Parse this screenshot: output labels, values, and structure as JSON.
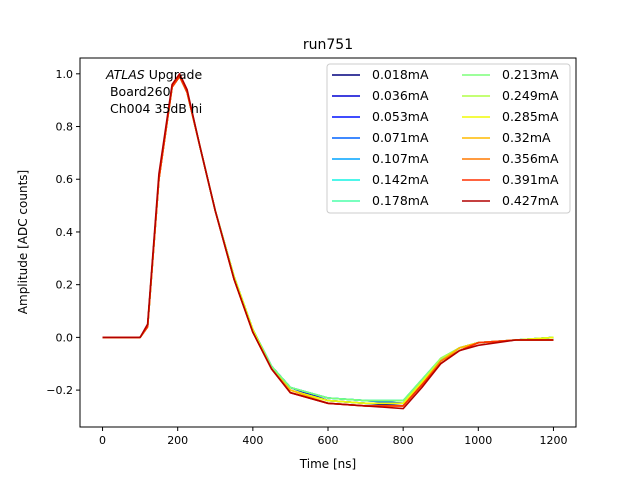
{
  "chart_data": {
    "type": "line",
    "title": "run751",
    "xlabel": "Time [ns]",
    "ylabel": "Amplitude [ADC counts]",
    "xlim": [
      -60,
      1260
    ],
    "ylim": [
      -0.34,
      1.06
    ],
    "xticks": [
      0,
      200,
      400,
      600,
      800,
      1000,
      1200
    ],
    "yticks": [
      -0.2,
      0.0,
      0.2,
      0.4,
      0.6,
      0.8,
      1.0
    ],
    "xtick_labels": [
      "0",
      "200",
      "400",
      "600",
      "800",
      "1000",
      "1200"
    ],
    "ytick_labels": [
      "−0.2",
      "0.0",
      "0.2",
      "0.4",
      "0.6",
      "0.8",
      "1.0"
    ],
    "grid": false,
    "legend_position": "top-right",
    "legend_columns": 2,
    "annotation": {
      "italic": "ATLAS",
      "rest": " Upgrade",
      "line2": " Board260",
      "line3": " Ch004 35dB hi"
    },
    "x": [
      0,
      100,
      120,
      150,
      185,
      205,
      225,
      260,
      300,
      350,
      400,
      450,
      500,
      600,
      700,
      800,
      850,
      900,
      950,
      1000,
      1100,
      1200
    ],
    "series": [
      {
        "name": "0.018mA",
        "color": "#00007f",
        "values": [
          0.0,
          0.0,
          0.04,
          0.6,
          0.95,
          0.99,
          0.93,
          0.72,
          0.48,
          0.23,
          0.03,
          -0.11,
          -0.19,
          -0.24,
          -0.25,
          -0.26,
          -0.18,
          -0.09,
          -0.04,
          -0.02,
          -0.01,
          0.0
        ]
      },
      {
        "name": "0.036mA",
        "color": "#0000d4",
        "values": [
          0.0,
          0.0,
          0.04,
          0.6,
          0.95,
          0.99,
          0.93,
          0.72,
          0.48,
          0.23,
          0.03,
          -0.11,
          -0.19,
          -0.24,
          -0.25,
          -0.25,
          -0.18,
          -0.09,
          -0.04,
          -0.02,
          -0.01,
          0.0
        ]
      },
      {
        "name": "0.053mA",
        "color": "#0010ff",
        "values": [
          0.0,
          0.0,
          0.04,
          0.6,
          0.95,
          0.99,
          0.93,
          0.72,
          0.48,
          0.23,
          0.03,
          -0.11,
          -0.19,
          -0.23,
          -0.24,
          -0.25,
          -0.17,
          -0.09,
          -0.04,
          -0.02,
          -0.01,
          0.0
        ]
      },
      {
        "name": "0.071mA",
        "color": "#0064ff",
        "values": [
          0.0,
          0.0,
          0.04,
          0.6,
          0.95,
          0.99,
          0.93,
          0.72,
          0.48,
          0.23,
          0.03,
          -0.11,
          -0.19,
          -0.23,
          -0.24,
          -0.25,
          -0.17,
          -0.08,
          -0.04,
          -0.02,
          -0.01,
          0.0
        ]
      },
      {
        "name": "0.107mA",
        "color": "#00a4ff",
        "values": [
          0.0,
          0.0,
          0.04,
          0.6,
          0.95,
          0.99,
          0.93,
          0.72,
          0.48,
          0.23,
          0.03,
          -0.11,
          -0.19,
          -0.23,
          -0.24,
          -0.24,
          -0.16,
          -0.08,
          -0.04,
          -0.02,
          -0.01,
          0.0
        ]
      },
      {
        "name": "0.142mA",
        "color": "#14f4e3",
        "values": [
          0.0,
          0.0,
          0.04,
          0.6,
          0.95,
          0.99,
          0.93,
          0.72,
          0.48,
          0.23,
          0.03,
          -0.11,
          -0.19,
          -0.23,
          -0.24,
          -0.24,
          -0.16,
          -0.08,
          -0.04,
          -0.02,
          -0.01,
          0.0
        ]
      },
      {
        "name": "0.178mA",
        "color": "#4dffaa",
        "values": [
          0.0,
          0.0,
          0.04,
          0.6,
          0.95,
          0.99,
          0.93,
          0.72,
          0.48,
          0.23,
          0.03,
          -0.11,
          -0.19,
          -0.23,
          -0.24,
          -0.24,
          -0.16,
          -0.08,
          -0.04,
          -0.02,
          -0.01,
          0.0
        ]
      },
      {
        "name": "0.213mA",
        "color": "#7dff7a",
        "values": [
          0.0,
          0.0,
          0.04,
          0.6,
          0.95,
          0.99,
          0.93,
          0.72,
          0.48,
          0.23,
          0.03,
          -0.11,
          -0.19,
          -0.23,
          -0.24,
          -0.24,
          -0.16,
          -0.08,
          -0.04,
          -0.02,
          -0.01,
          0.0
        ]
      },
      {
        "name": "0.249mA",
        "color": "#b0ff47",
        "values": [
          0.0,
          0.0,
          0.04,
          0.6,
          0.95,
          0.99,
          0.93,
          0.72,
          0.48,
          0.23,
          0.03,
          -0.12,
          -0.2,
          -0.24,
          -0.25,
          -0.25,
          -0.17,
          -0.08,
          -0.04,
          -0.02,
          -0.01,
          0.0
        ]
      },
      {
        "name": "0.285mA",
        "color": "#f1fc06",
        "values": [
          0.0,
          0.0,
          0.04,
          0.6,
          0.95,
          0.99,
          0.93,
          0.72,
          0.48,
          0.23,
          0.03,
          -0.12,
          -0.2,
          -0.24,
          -0.25,
          -0.25,
          -0.17,
          -0.09,
          -0.04,
          -0.02,
          -0.01,
          0.0
        ]
      },
      {
        "name": "0.32mA",
        "color": "#ffba00",
        "values": [
          0.0,
          0.0,
          0.04,
          0.6,
          0.95,
          0.99,
          0.93,
          0.72,
          0.48,
          0.22,
          0.02,
          -0.12,
          -0.2,
          -0.25,
          -0.26,
          -0.26,
          -0.18,
          -0.09,
          -0.04,
          -0.02,
          -0.01,
          -0.01
        ]
      },
      {
        "name": "0.356mA",
        "color": "#ff7a00",
        "values": [
          0.0,
          0.0,
          0.04,
          0.6,
          0.95,
          0.99,
          0.93,
          0.72,
          0.48,
          0.22,
          0.02,
          -0.12,
          -0.21,
          -0.25,
          -0.26,
          -0.26,
          -0.18,
          -0.09,
          -0.05,
          -0.02,
          -0.01,
          -0.01
        ]
      },
      {
        "name": "0.391mA",
        "color": "#ff3000",
        "values": [
          0.0,
          0.0,
          0.04,
          0.6,
          0.95,
          0.99,
          0.93,
          0.72,
          0.48,
          0.22,
          0.02,
          -0.12,
          -0.21,
          -0.25,
          -0.26,
          -0.26,
          -0.18,
          -0.1,
          -0.05,
          -0.02,
          -0.01,
          -0.01
        ]
      },
      {
        "name": "0.427mA",
        "color": "#b20000",
        "values": [
          0.0,
          0.0,
          0.05,
          0.62,
          0.96,
          1.0,
          0.94,
          0.72,
          0.48,
          0.22,
          0.02,
          -0.12,
          -0.21,
          -0.25,
          -0.26,
          -0.27,
          -0.19,
          -0.1,
          -0.05,
          -0.03,
          -0.01,
          -0.01
        ]
      }
    ]
  }
}
